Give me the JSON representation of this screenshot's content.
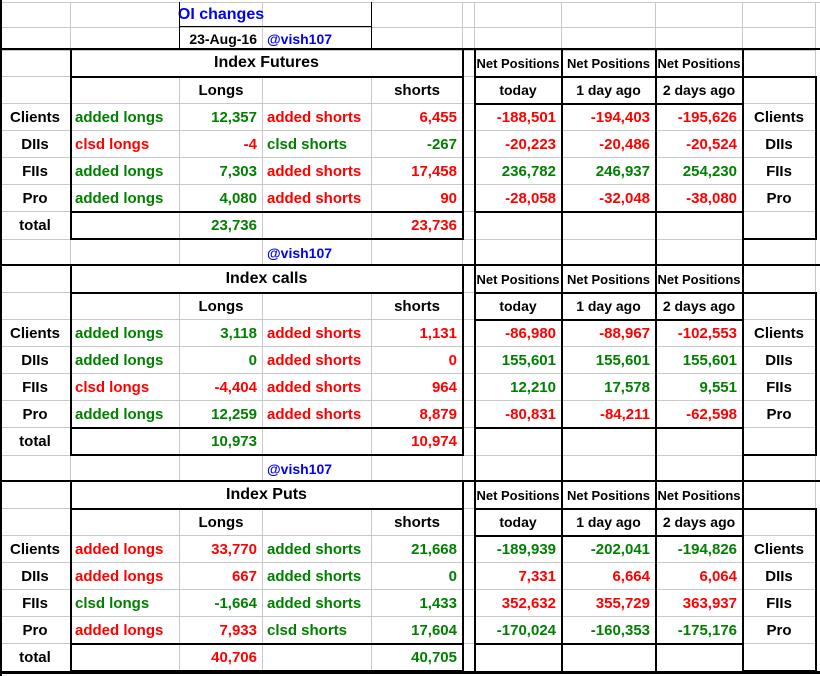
{
  "title": "OI changes",
  "date": "23-Aug-16",
  "handle": "@vish107",
  "colors": {
    "green": "#008000",
    "red": "#ff0000",
    "blue": "#0000ff",
    "black": "#000000"
  },
  "net_positions_label": "Net Positions",
  "net_col_headers": [
    "today",
    "1 day ago",
    "2 days ago"
  ],
  "longs_header": "Longs",
  "shorts_header": "shorts",
  "total_label": "total",
  "sections": [
    {
      "name": "Index Futures",
      "handle_row": true,
      "rows": [
        {
          "label": "Clients",
          "long_action": "added longs",
          "long_value": "12,357",
          "long_color": "green",
          "short_action": "added shorts",
          "short_value": "6,455",
          "short_color": "red",
          "net": [
            "-188,501",
            "-194,403",
            "-195,626"
          ],
          "net_color": "red"
        },
        {
          "label": "DIIs",
          "long_action": "clsd longs",
          "long_value": "-4",
          "long_color": "red",
          "short_action": "clsd shorts",
          "short_value": "-267",
          "short_color": "green",
          "net": [
            "-20,223",
            "-20,486",
            "-20,524"
          ],
          "net_color": "red"
        },
        {
          "label": "FIIs",
          "long_action": "added longs",
          "long_value": "7,303",
          "long_color": "green",
          "short_action": "added shorts",
          "short_value": "17,458",
          "short_color": "red",
          "net": [
            "236,782",
            "246,937",
            "254,230"
          ],
          "net_color": "green"
        },
        {
          "label": "Pro",
          "long_action": "added longs",
          "long_value": "4,080",
          "long_color": "green",
          "short_action": "added shorts",
          "short_value": "90",
          "short_color": "red",
          "net": [
            "-28,058",
            "-32,048",
            "-38,080"
          ],
          "net_color": "red"
        }
      ],
      "total_longs": "23,736",
      "total_longs_color": "green",
      "total_shorts": "23,736",
      "total_shorts_color": "red"
    },
    {
      "name": "Index calls",
      "handle_row": true,
      "rows": [
        {
          "label": "Clients",
          "long_action": "added longs",
          "long_value": "3,118",
          "long_color": "green",
          "short_action": "added shorts",
          "short_value": "1,131",
          "short_color": "red",
          "net": [
            "-86,980",
            "-88,967",
            "-102,553"
          ],
          "net_color": "red"
        },
        {
          "label": "DIIs",
          "long_action": "added longs",
          "long_value": "0",
          "long_color": "green",
          "short_action": "added shorts",
          "short_value": "0",
          "short_color": "red",
          "net": [
            "155,601",
            "155,601",
            "155,601"
          ],
          "net_color": "green"
        },
        {
          "label": "FIIs",
          "long_action": "clsd longs",
          "long_value": "-4,404",
          "long_color": "red",
          "short_action": "added shorts",
          "short_value": "964",
          "short_color": "red",
          "net": [
            "12,210",
            "17,578",
            "9,551"
          ],
          "net_color": "green"
        },
        {
          "label": "Pro",
          "long_action": "added longs",
          "long_value": "12,259",
          "long_color": "green",
          "short_action": "added shorts",
          "short_value": "8,879",
          "short_color": "red",
          "net": [
            "-80,831",
            "-84,211",
            "-62,598"
          ],
          "net_color": "red"
        }
      ],
      "total_longs": "10,973",
      "total_longs_color": "green",
      "total_shorts": "10,974",
      "total_shorts_color": "red"
    },
    {
      "name": "Index Puts",
      "handle_row": false,
      "rows": [
        {
          "label": "Clients",
          "long_action": "added longs",
          "long_value": "33,770",
          "long_color": "red",
          "short_action": "added shorts",
          "short_value": "21,668",
          "short_color": "green",
          "net": [
            "-189,939",
            "-202,041",
            "-194,826"
          ],
          "net_color": "green"
        },
        {
          "label": "DIIs",
          "long_action": "added longs",
          "long_value": "667",
          "long_color": "red",
          "short_action": "added shorts",
          "short_value": "0",
          "short_color": "green",
          "net": [
            "7,331",
            "6,664",
            "6,064"
          ],
          "net_color": "red"
        },
        {
          "label": "FIIs",
          "long_action": "clsd longs",
          "long_value": "-1,664",
          "long_color": "green",
          "short_action": "added shorts",
          "short_value": "1,433",
          "short_color": "green",
          "net": [
            "352,632",
            "355,729",
            "363,937"
          ],
          "net_color": "red"
        },
        {
          "label": "Pro",
          "long_action": "added longs",
          "long_value": "7,933",
          "long_color": "red",
          "short_action": "clsd shorts",
          "short_value": "17,604",
          "short_color": "green",
          "net": [
            "-170,024",
            "-160,353",
            "-175,176"
          ],
          "net_color": "green"
        }
      ],
      "total_longs": "40,706",
      "total_longs_color": "red",
      "total_shorts": "40,705",
      "total_shorts_color": "green"
    }
  ]
}
